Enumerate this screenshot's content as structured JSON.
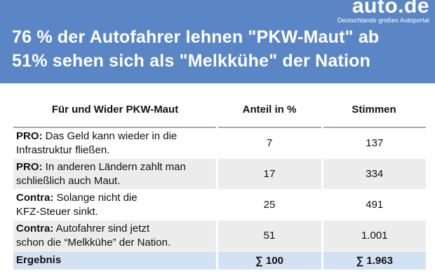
{
  "brand": {
    "name": "auto.de",
    "tagline": "Deutschlands großes Autoportal"
  },
  "headline": {
    "line1": "76 % der Autofahrer lehnen \"PKW-Maut\" ab",
    "line2": "51% sehen sich als \"Melkkühe\" der Nation"
  },
  "table": {
    "headers": [
      "Für und Wider PKW-Maut",
      "Anteil in %",
      "Stimmen"
    ],
    "rows": [
      {
        "label": "PRO:",
        "text_line1": " Das Geld kann wieder in die",
        "text_line2": "Infrastruktur fließen.",
        "share": "7",
        "votes": "137"
      },
      {
        "label": "PRO:",
        "text_line1": " In anderen Ländern zahlt man",
        "text_line2": "schließlich auch Maut.",
        "share": "17",
        "votes": "334"
      },
      {
        "label": "Contra:",
        "text_line1": " Solange nicht die",
        "text_line2": "KFZ-Steuer sinkt.",
        "share": "25",
        "votes": "491"
      },
      {
        "label": "Contra:",
        "text_line1": " Autofahrer sind jetzt",
        "text_line2": "schon die “Melkkühe” der Nation.",
        "share": "51",
        "votes": "1.001"
      }
    ],
    "result": {
      "label": "Ergebnis",
      "share": "∑ 100",
      "votes": "∑ 1.963"
    }
  }
}
